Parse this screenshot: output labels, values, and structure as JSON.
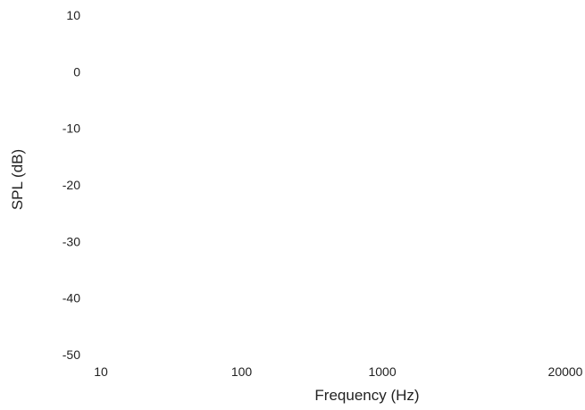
{
  "chart_data": {
    "type": "line",
    "title": "",
    "xlabel": "Frequency (Hz)",
    "ylabel": "SPL (dB)",
    "x_scale": "log",
    "xlim": [
      10,
      20000
    ],
    "ylim": [
      -50,
      10
    ],
    "x_ticks": [
      10,
      100,
      1000,
      20000
    ],
    "x_tick_labels": [
      "10",
      "100",
      "1000",
      "20000"
    ],
    "y_ticks": [
      10,
      0,
      -10,
      -20,
      -30,
      -40,
      -50
    ],
    "y_tick_labels": [
      "10",
      "0",
      "-10",
      "-20",
      "-30",
      "-40",
      "-50"
    ],
    "grid": false,
    "series": []
  }
}
